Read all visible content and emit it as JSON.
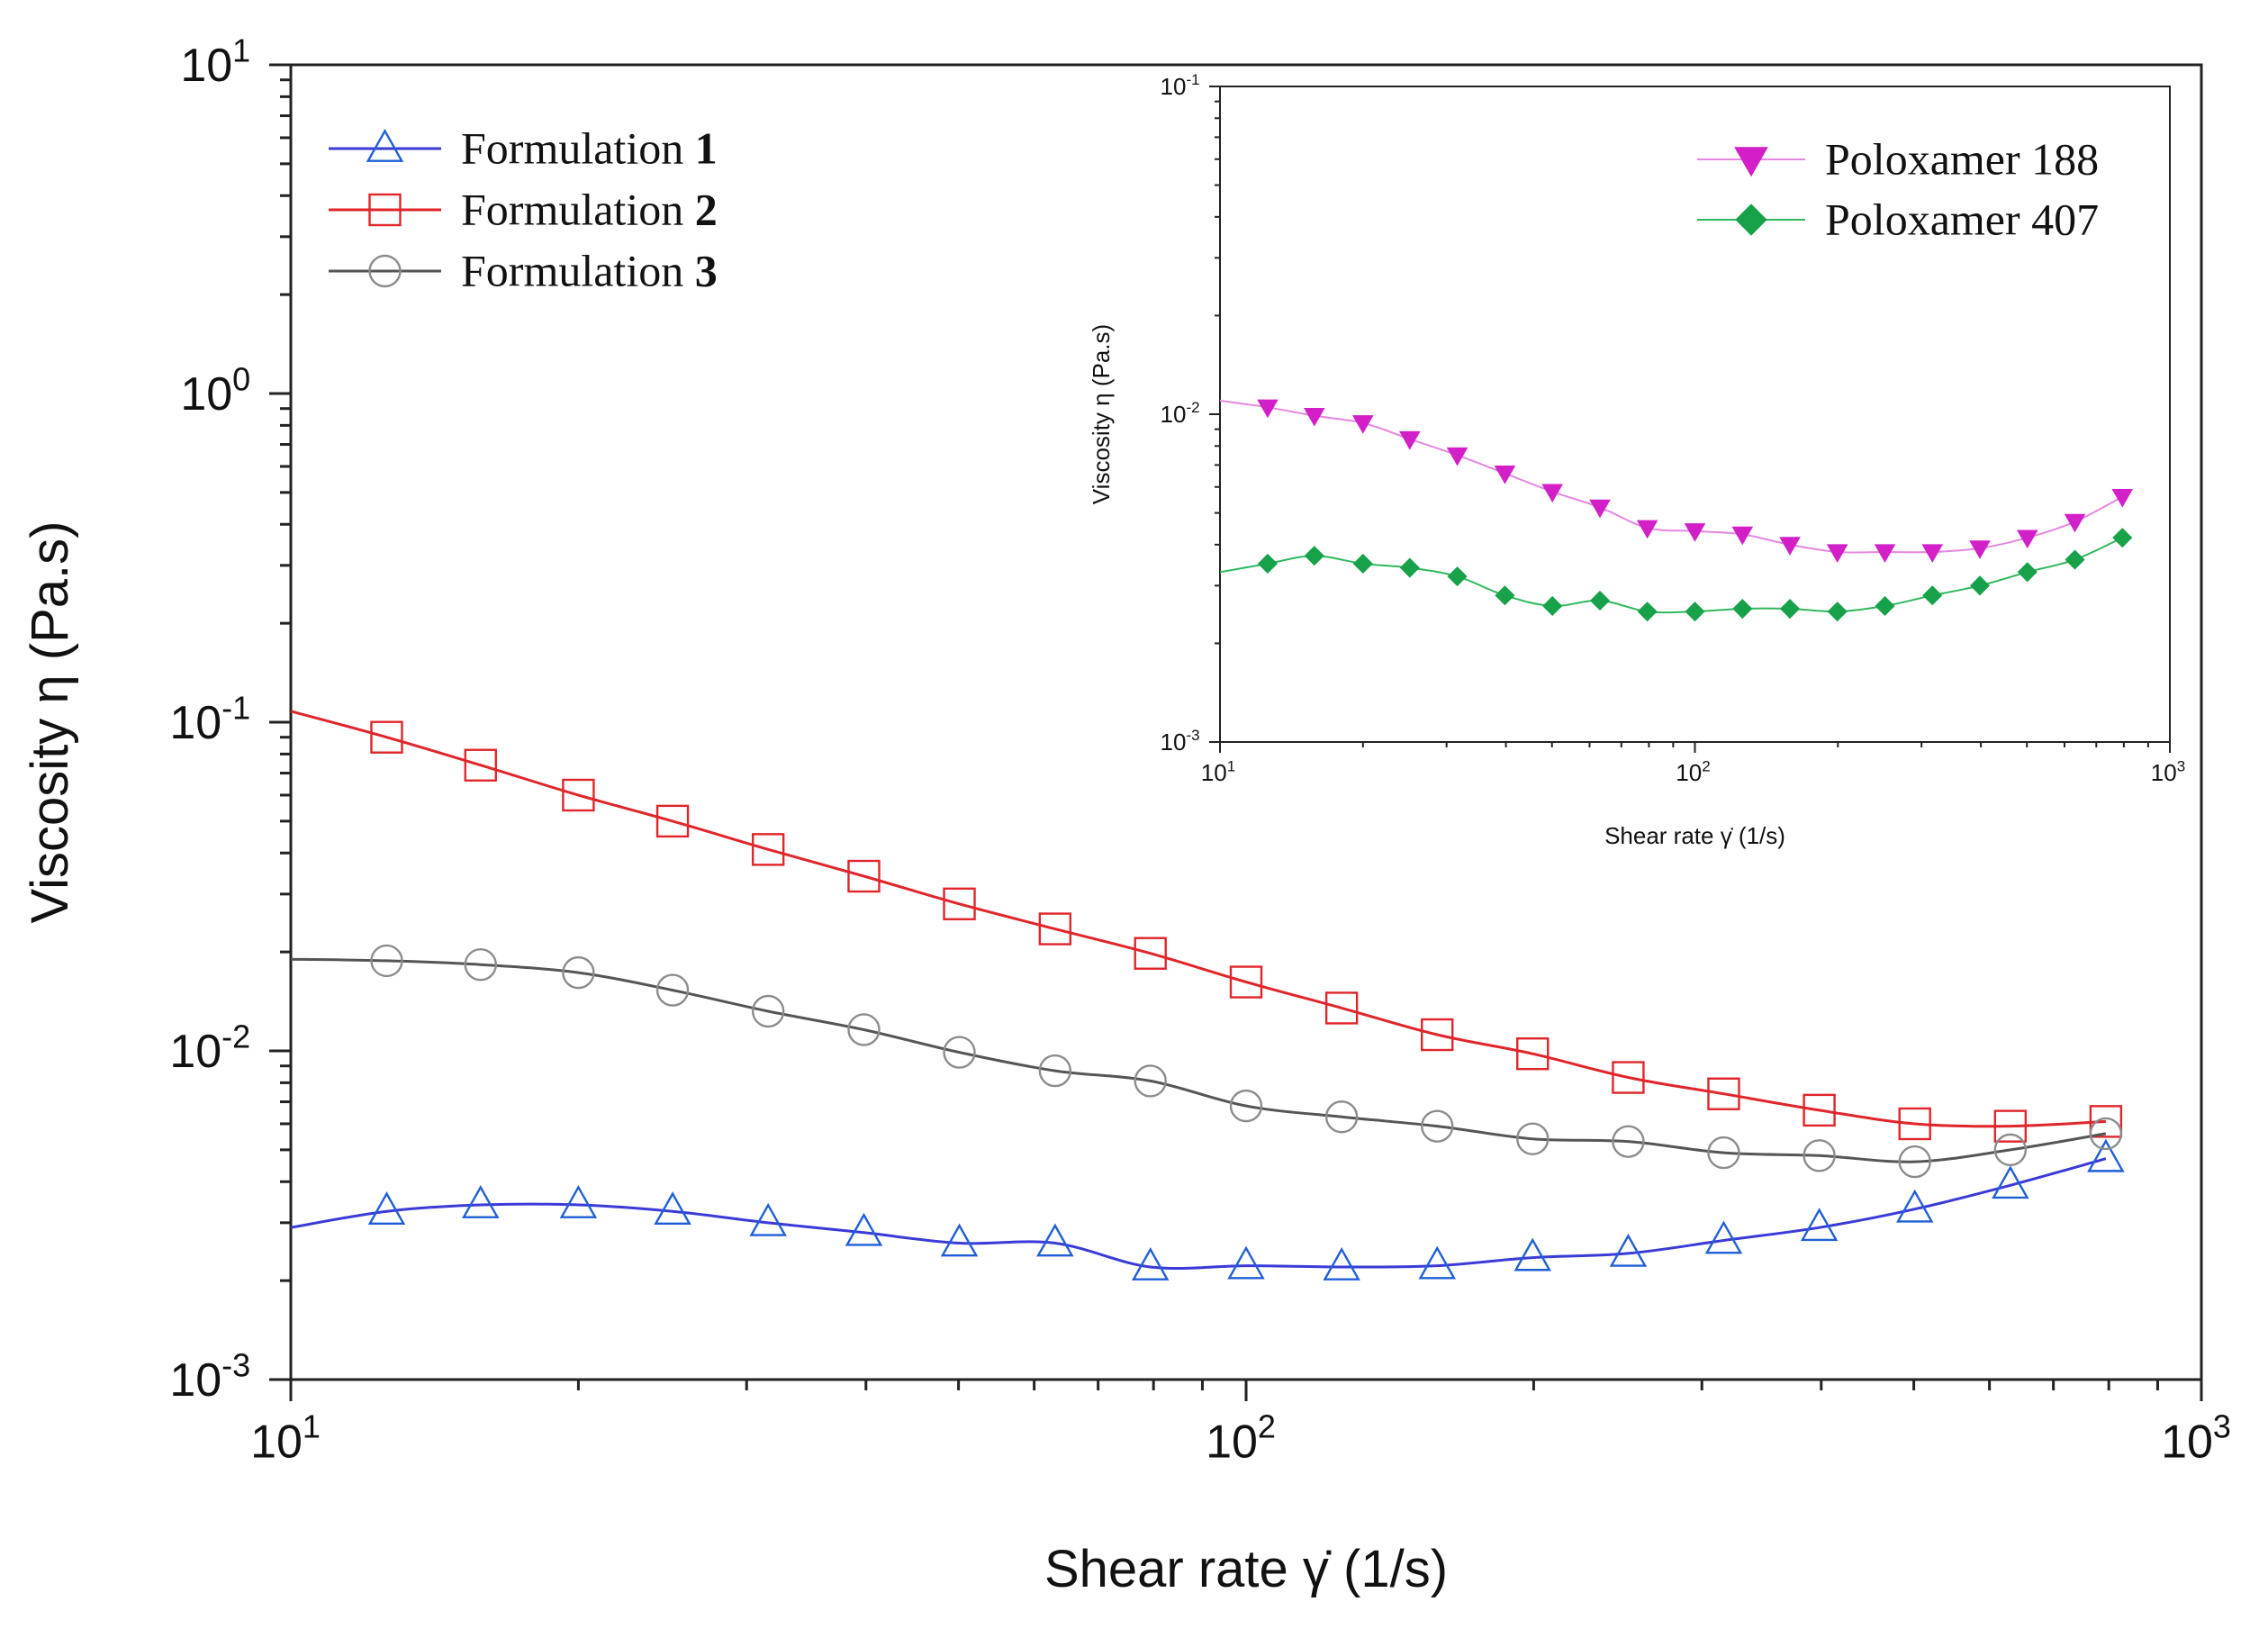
{
  "chart_data": [
    {
      "id": "main",
      "type": "line",
      "scale": "log-log",
      "title": "",
      "xlabel": "Shear rate γ̇ (1/s)",
      "ylabel": "Viscosity η (Pa.s)",
      "xlim": [
        10,
        1000
      ],
      "ylim": [
        0.001,
        10
      ],
      "grid": false,
      "legend_position": "top-left",
      "x_ticks": [
        {
          "value": 10,
          "base": "10",
          "exp": "1"
        },
        {
          "value": 100,
          "base": "10",
          "exp": "2"
        },
        {
          "value": 1000,
          "base": "10",
          "exp": "3"
        }
      ],
      "y_ticks": [
        {
          "value": 0.001,
          "base": "10",
          "exp": "-3"
        },
        {
          "value": 0.01,
          "base": "10",
          "exp": "-2"
        },
        {
          "value": 0.1,
          "base": "10",
          "exp": "-1"
        },
        {
          "value": 1,
          "base": "10",
          "exp": "0"
        },
        {
          "value": 10,
          "base": "10",
          "exp": "1"
        }
      ],
      "x": [
        12.6,
        15.8,
        20,
        25.1,
        31.6,
        39.8,
        50.1,
        63.1,
        79.4,
        100,
        125.9,
        158.5,
        199.5,
        251.2,
        316.2,
        398.1,
        501.2,
        631,
        794.3
      ],
      "series": [
        {
          "name": "Formulation",
          "number": "1",
          "color": "#1f5fd6",
          "line_color": "#3a3ad8",
          "marker": "triangle",
          "start_value": 0.0029,
          "values": [
            0.00325,
            0.0034,
            0.0034,
            0.00325,
            0.003,
            0.0028,
            0.0026,
            0.0026,
            0.0022,
            0.00222,
            0.0022,
            0.00222,
            0.00235,
            0.00242,
            0.00265,
            0.0029,
            0.0033,
            0.0039,
            0.0047
          ]
        },
        {
          "name": "Formulation",
          "number": "2",
          "color": "#e0252b",
          "line_color": "#e0252b",
          "marker": "square",
          "start_value": 0.108,
          "values": [
            0.09,
            0.074,
            0.06,
            0.05,
            0.041,
            0.034,
            0.028,
            0.0235,
            0.0198,
            0.0162,
            0.0135,
            0.0112,
            0.0098,
            0.0083,
            0.0074,
            0.0066,
            0.006,
            0.0059,
            0.0061
          ]
        },
        {
          "name": "Formulation",
          "number": "3",
          "color": "#8c8c8c",
          "line_color": "#555555",
          "marker": "circle",
          "start_value": 0.019,
          "values": [
            0.0188,
            0.0183,
            0.0173,
            0.0153,
            0.0132,
            0.0116,
            0.0099,
            0.0087,
            0.0081,
            0.0068,
            0.0063,
            0.0059,
            0.0054,
            0.0053,
            0.0049,
            0.0048,
            0.0046,
            0.005,
            0.0056
          ]
        }
      ]
    },
    {
      "id": "inset",
      "type": "line",
      "scale": "log-log",
      "title": "",
      "xlabel": "Shear rate γ̇ (1/s)",
      "ylabel": "Viscosity η (Pa.s)",
      "xlim": [
        10,
        1000
      ],
      "ylim": [
        0.001,
        0.1
      ],
      "grid": false,
      "legend_position": "top-right",
      "x_ticks": [
        {
          "value": 10,
          "base": "10",
          "exp": "1"
        },
        {
          "value": 100,
          "base": "10",
          "exp": "2"
        },
        {
          "value": 1000,
          "base": "10",
          "exp": "3"
        }
      ],
      "y_ticks": [
        {
          "value": 0.001,
          "base": "10",
          "exp": "-3"
        },
        {
          "value": 0.01,
          "base": "10",
          "exp": "-2"
        },
        {
          "value": 0.1,
          "base": "10",
          "exp": "-1"
        }
      ],
      "x": [
        12.6,
        15.8,
        20,
        25.1,
        31.6,
        39.8,
        50.1,
        63.1,
        79.4,
        100,
        125.9,
        158.5,
        199.5,
        251.2,
        316.2,
        398.1,
        501.2,
        631,
        794.3
      ],
      "series": [
        {
          "name": "Poloxamer 188",
          "color": "#d21fc8",
          "line_color": "#e487e0",
          "marker": "down-triangle",
          "start_value": 0.011,
          "values": [
            0.0105,
            0.0099,
            0.0094,
            0.0084,
            0.0075,
            0.0066,
            0.0058,
            0.0052,
            0.0045,
            0.0044,
            0.0043,
            0.004,
            0.0038,
            0.0038,
            0.0038,
            0.0039,
            0.0042,
            0.0047,
            0.0056
          ]
        },
        {
          "name": "Poloxamer 407",
          "color": "#17a24a",
          "line_color": "#2eb85c",
          "marker": "diamond",
          "start_value": 0.0033,
          "values": [
            0.0035,
            0.0037,
            0.0035,
            0.0034,
            0.0032,
            0.0028,
            0.0026,
            0.0027,
            0.0025,
            0.0025,
            0.00255,
            0.00255,
            0.0025,
            0.0026,
            0.0028,
            0.003,
            0.0033,
            0.0036,
            0.0042
          ]
        }
      ]
    }
  ]
}
